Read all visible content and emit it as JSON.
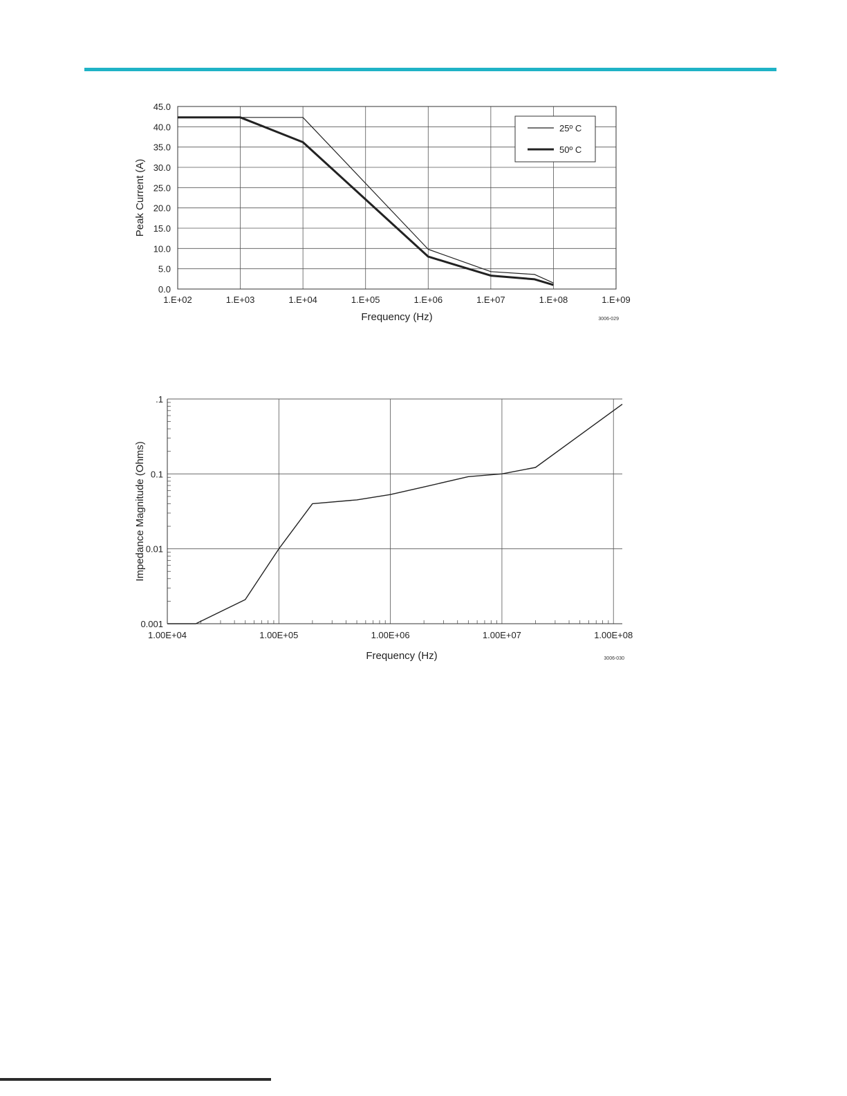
{
  "page": {
    "accent_color": "#1fb3c6"
  },
  "chart_data": [
    {
      "type": "line",
      "xlabel": "Frequency (Hz)",
      "ylabel": "Peak Current (A)",
      "x_scale": "log",
      "xlim": [
        100,
        1000000000
      ],
      "ylim": [
        0,
        45
      ],
      "x_ticks": [
        "1.E+02",
        "1.E+03",
        "1.E+04",
        "1.E+05",
        "1.E+06",
        "1.E+07",
        "1.E+08",
        "1.E+09"
      ],
      "y_ticks": [
        "0.0",
        "5.0",
        "10.0",
        "15.0",
        "20.0",
        "25.0",
        "30.0",
        "35.0",
        "40.0",
        "45.0"
      ],
      "grid": true,
      "legend_position": "top-right",
      "figure_code": "3006-029",
      "series": [
        {
          "name": "25º C",
          "color": "#222222",
          "line_width": "thin",
          "x": [
            100,
            1000,
            10000,
            1000000,
            10000000,
            50000000,
            100000000
          ],
          "y": [
            42.3,
            42.3,
            42.3,
            9.8,
            4.3,
            3.6,
            1.5
          ]
        },
        {
          "name": "50º C",
          "color": "#222222",
          "line_width": "thick",
          "x": [
            100,
            1000,
            10000,
            1000000,
            10000000,
            50000000,
            100000000
          ],
          "y": [
            42.3,
            42.3,
            36.2,
            8.0,
            3.3,
            2.4,
            1.0
          ]
        }
      ]
    },
    {
      "type": "line",
      "xlabel": "Frequency (Hz)",
      "ylabel": "Impedance Magnitude (Ohms)",
      "x_scale": "log",
      "y_scale": "log",
      "xlim": [
        10000,
        120000000
      ],
      "ylim": [
        0.001,
        1
      ],
      "x_ticks": [
        "1.00E+04",
        "1.00E+05",
        "1.00E+06",
        "1.00E+07",
        "1.00E+08"
      ],
      "y_ticks": [
        "0.001",
        "0.01",
        "0.1",
        ".1"
      ],
      "grid": true,
      "figure_code": "3006-030",
      "series": [
        {
          "color": "#222222",
          "x": [
            10000,
            18000,
            50000,
            100000,
            200000,
            500000,
            1000000,
            2000000,
            5000000,
            10000000,
            20000000,
            120000000
          ],
          "y": [
            0.001,
            0.001,
            0.0021,
            0.01,
            0.04,
            0.045,
            0.053,
            0.067,
            0.092,
            0.1,
            0.122,
            0.85
          ]
        }
      ]
    }
  ]
}
